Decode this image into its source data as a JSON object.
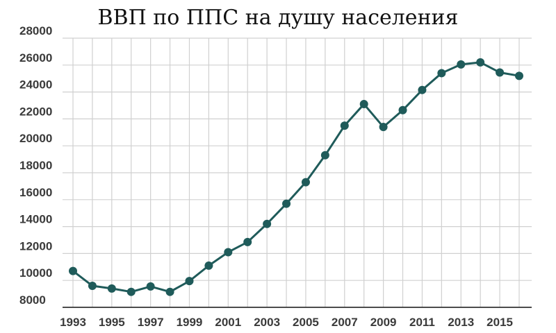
{
  "colors": {
    "line": "#1f5b5a",
    "marker": "#1f5b5a",
    "grid": "#d0d0d0",
    "axis": "#333333"
  },
  "chart_data": {
    "type": "line",
    "title": "ВВП по ППС на душу населения",
    "xlabel": "",
    "ylabel": "",
    "grid": true,
    "xlim": [
      1993,
      2016
    ],
    "ylim": [
      8000,
      28000
    ],
    "y_ticks": [
      "8000",
      "10000",
      "12000",
      "14000",
      "16000",
      "18000",
      "20000",
      "22000",
      "24000",
      "26000",
      "28000"
    ],
    "x_ticks": [
      "1993",
      "1995",
      "1997",
      "1999",
      "2001",
      "2003",
      "2005",
      "2007",
      "2009",
      "2011",
      "2013",
      "2015"
    ],
    "x": [
      1993,
      1994,
      1995,
      1996,
      1997,
      1998,
      1999,
      2000,
      2001,
      2002,
      2003,
      2004,
      2005,
      2006,
      2007,
      2008,
      2009,
      2010,
      2011,
      2012,
      2013,
      2014,
      2015,
      2016
    ],
    "series": [
      {
        "values": [
          10700,
          9600,
          9400,
          9150,
          9550,
          9150,
          9950,
          11100,
          12100,
          12850,
          14200,
          15700,
          17300,
          19300,
          21500,
          23100,
          21400,
          22650,
          24150,
          25400,
          26050,
          26200,
          25450,
          25200
        ]
      }
    ]
  }
}
